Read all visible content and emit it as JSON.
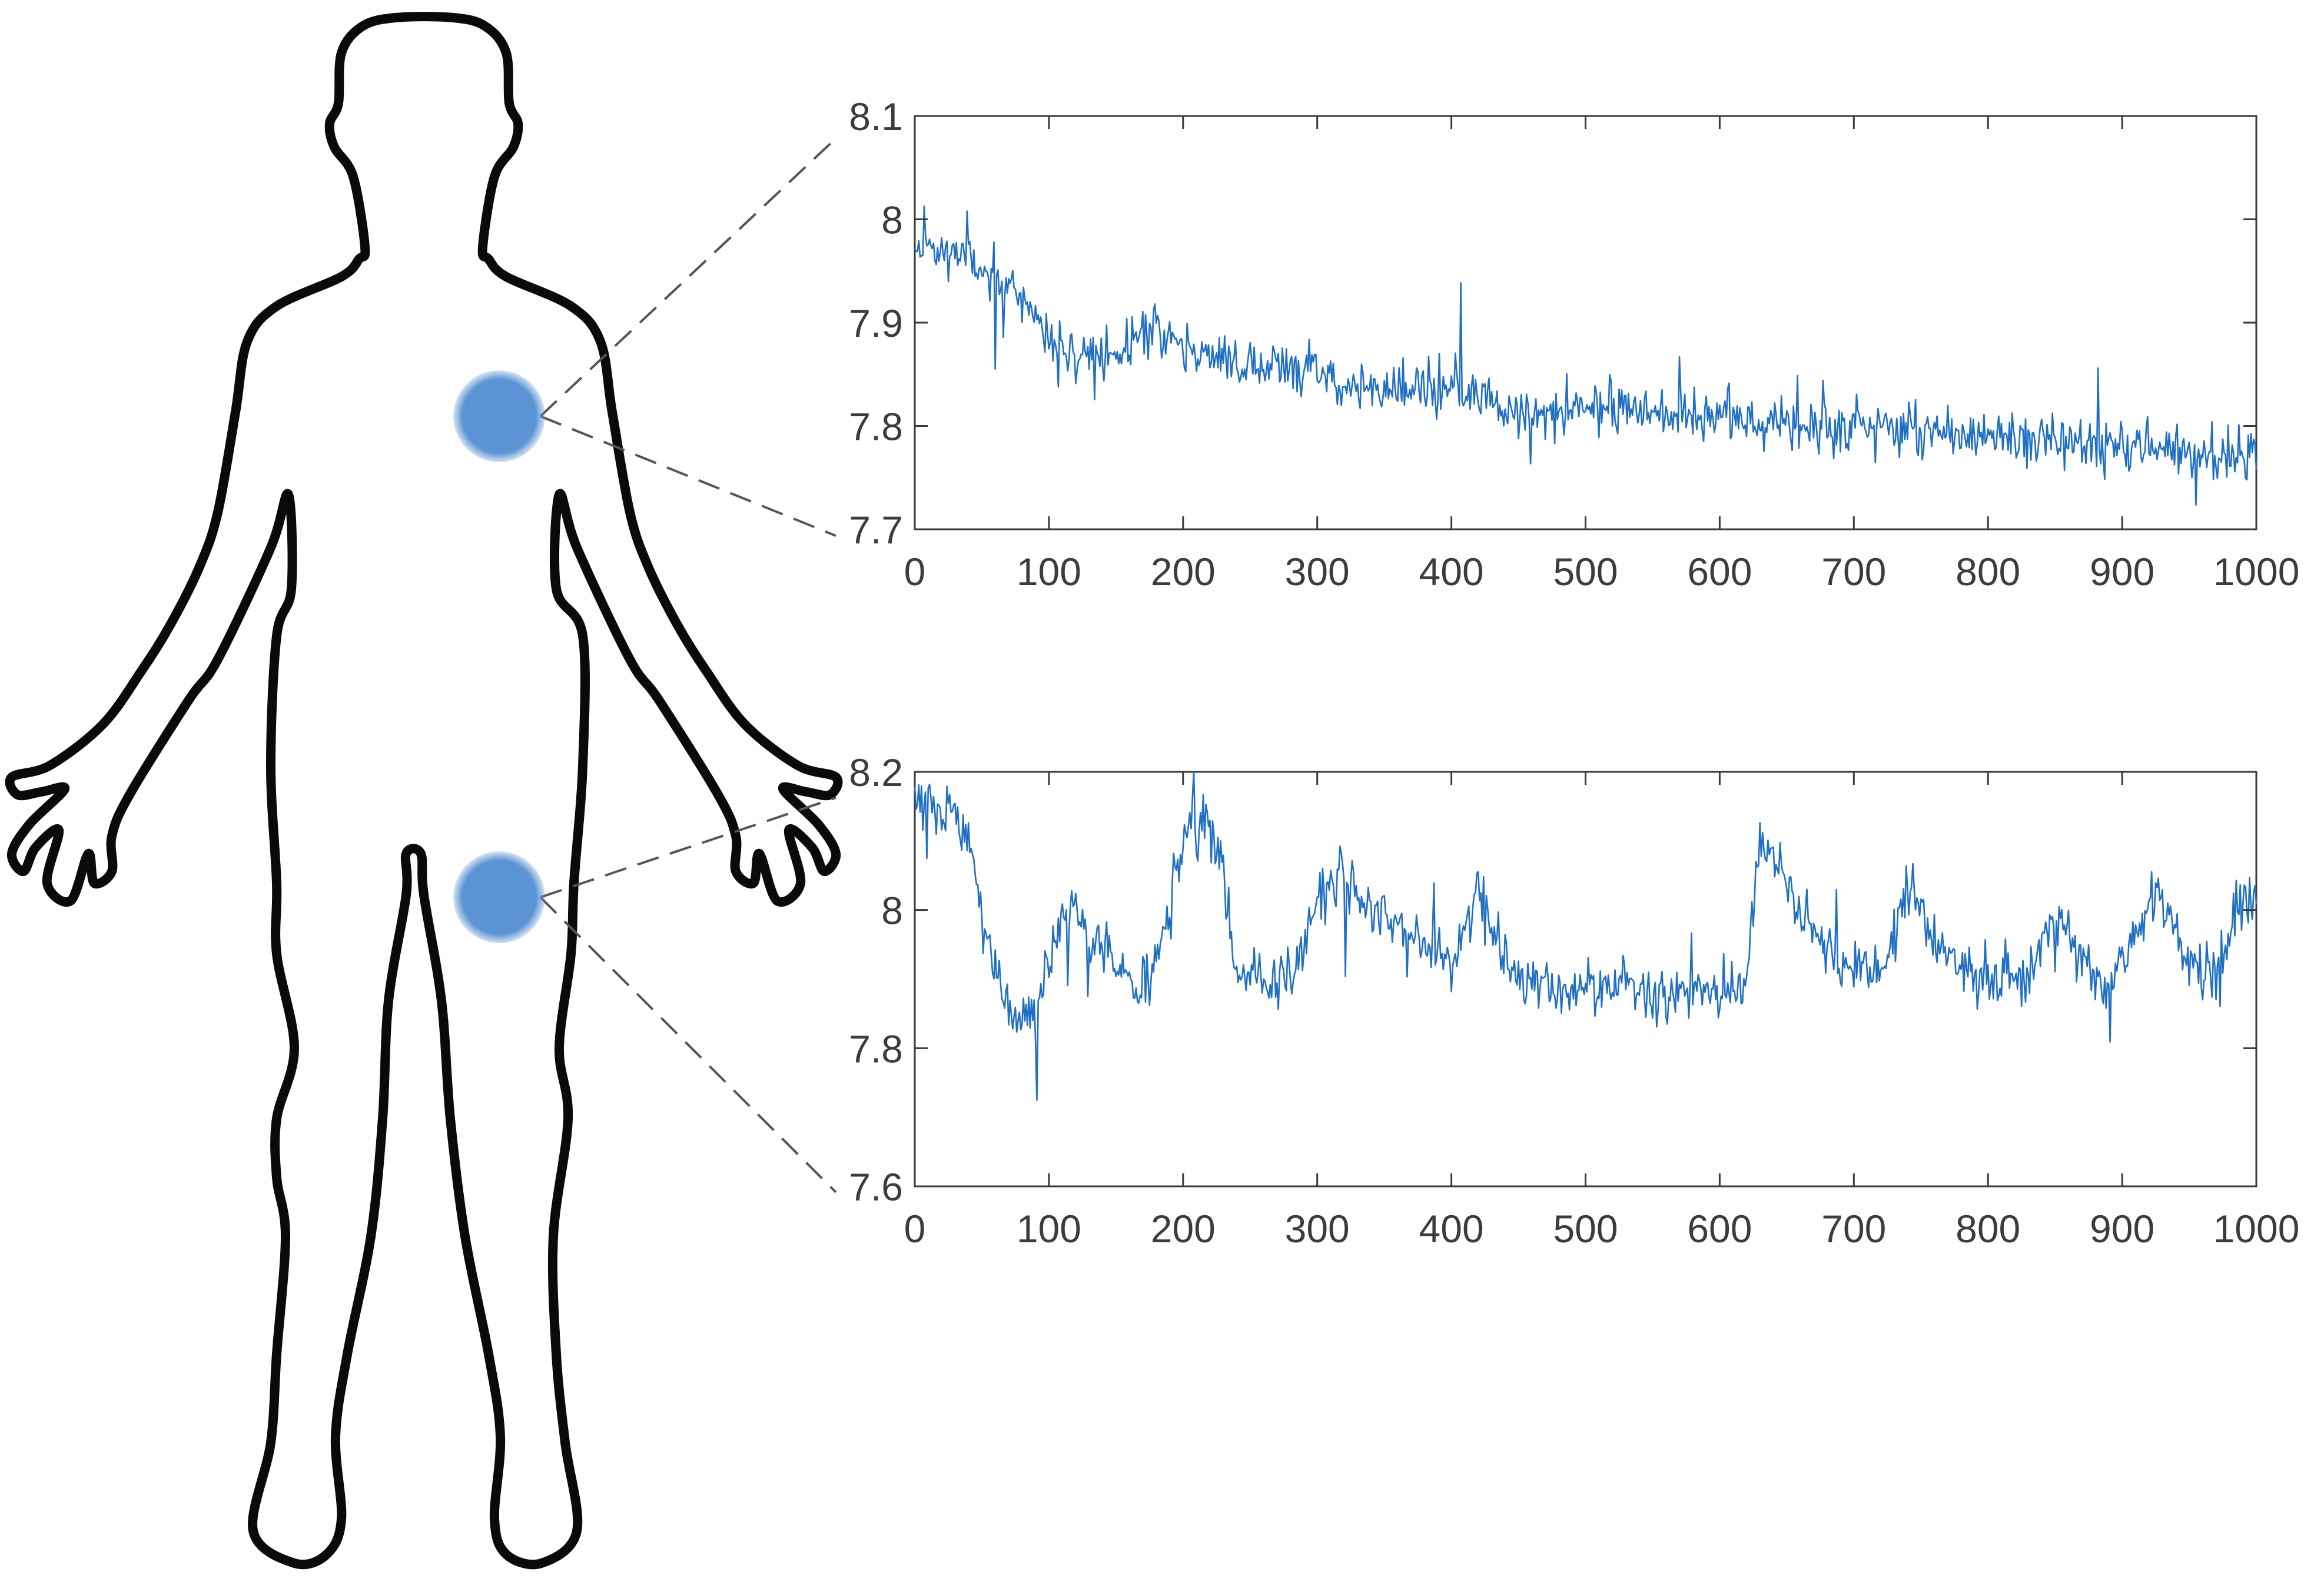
{
  "colors": {
    "series": "#1f6fc4",
    "sensor": "#5b93d4",
    "outline": "#0a0a0a",
    "axis": "#3a3a3a",
    "leader": "#555555"
  },
  "sensors": [
    {
      "name": "chest"
    },
    {
      "name": "thigh"
    }
  ],
  "chart_data": [
    {
      "type": "line",
      "xlim": [
        0,
        1000
      ],
      "ylim": [
        7.7,
        8.1
      ],
      "x_ticks": [
        0,
        100,
        200,
        300,
        400,
        500,
        600,
        700,
        800,
        900,
        1000
      ],
      "y_ticks": [
        7.7,
        7.8,
        7.9,
        8,
        8.1
      ],
      "x_tick_labels": [
        "0",
        "100",
        "200",
        "300",
        "400",
        "500",
        "600",
        "700",
        "800",
        "900",
        "1000"
      ],
      "y_tick_labels": [
        "7.7",
        "7.8",
        "7.9",
        "8",
        "8.1"
      ],
      "grid": false,
      "series": [
        {
          "anchors": [
            [
              0,
              7.975
            ],
            [
              20,
              7.97
            ],
            [
              40,
              7.965
            ],
            [
              60,
              7.94
            ],
            [
              80,
              7.93
            ],
            [
              100,
              7.88
            ],
            [
              120,
              7.868
            ],
            [
              140,
              7.868
            ],
            [
              160,
              7.875
            ],
            [
              175,
              7.9
            ],
            [
              190,
              7.885
            ],
            [
              200,
              7.875
            ],
            [
              220,
              7.865
            ],
            [
              250,
              7.86
            ],
            [
              300,
              7.855
            ],
            [
              320,
              7.84
            ],
            [
              350,
              7.835
            ],
            [
              400,
              7.835
            ],
            [
              420,
              7.83
            ],
            [
              450,
              7.815
            ],
            [
              480,
              7.81
            ],
            [
              500,
              7.82
            ],
            [
              550,
              7.815
            ],
            [
              600,
              7.81
            ],
            [
              650,
              7.8
            ],
            [
              700,
              7.8
            ],
            [
              750,
              7.795
            ],
            [
              800,
              7.79
            ],
            [
              850,
              7.785
            ],
            [
              900,
              7.785
            ],
            [
              950,
              7.775
            ],
            [
              1000,
              7.77
            ]
          ],
          "noise": 0.012,
          "spike_sd": 0.035,
          "seed": 11
        }
      ]
    },
    {
      "type": "line",
      "xlim": [
        0,
        1000
      ],
      "ylim": [
        7.6,
        8.2
      ],
      "x_ticks": [
        0,
        100,
        200,
        300,
        400,
        500,
        600,
        700,
        800,
        900,
        1000
      ],
      "y_ticks": [
        7.6,
        7.8,
        8,
        8.2
      ],
      "x_tick_labels": [
        "0",
        "100",
        "200",
        "300",
        "400",
        "500",
        "600",
        "700",
        "800",
        "900",
        "1000"
      ],
      "y_tick_labels": [
        "7.6",
        "7.8",
        "8",
        "8.2"
      ],
      "grid": false,
      "series": [
        {
          "anchors": [
            [
              0,
              8.15
            ],
            [
              30,
              8.14
            ],
            [
              40,
              8.1
            ],
            [
              50,
              8.0
            ],
            [
              70,
              7.85
            ],
            [
              80,
              7.83
            ],
            [
              95,
              7.88
            ],
            [
              110,
              8.0
            ],
            [
              120,
              7.99
            ],
            [
              150,
              7.92
            ],
            [
              170,
              7.88
            ],
            [
              180,
              7.92
            ],
            [
              200,
              8.1
            ],
            [
              220,
              8.12
            ],
            [
              230,
              8.06
            ],
            [
              240,
              7.91
            ],
            [
              270,
              7.9
            ],
            [
              285,
              7.92
            ],
            [
              300,
              8.02
            ],
            [
              320,
              8.05
            ],
            [
              340,
              8.0
            ],
            [
              380,
              7.95
            ],
            [
              400,
              7.92
            ],
            [
              420,
              8.03
            ],
            [
              430,
              7.97
            ],
            [
              450,
              7.9
            ],
            [
              480,
              7.88
            ],
            [
              500,
              7.88
            ],
            [
              530,
              7.9
            ],
            [
              560,
              7.88
            ],
            [
              600,
              7.89
            ],
            [
              620,
              7.9
            ],
            [
              630,
              8.1
            ],
            [
              640,
              8.08
            ],
            [
              660,
              8.0
            ],
            [
              690,
              7.92
            ],
            [
              720,
              7.9
            ],
            [
              740,
              8.04
            ],
            [
              760,
              7.96
            ],
            [
              790,
              7.9
            ],
            [
              830,
              7.9
            ],
            [
              850,
              8.0
            ],
            [
              870,
              7.93
            ],
            [
              890,
              7.88
            ],
            [
              920,
              8.0
            ],
            [
              930,
              8.02
            ],
            [
              950,
              7.92
            ],
            [
              970,
              7.9
            ],
            [
              990,
              8.02
            ],
            [
              1000,
              8.0
            ]
          ],
          "noise": 0.02,
          "spike_sd": 0.06,
          "seed": 29
        }
      ]
    }
  ]
}
